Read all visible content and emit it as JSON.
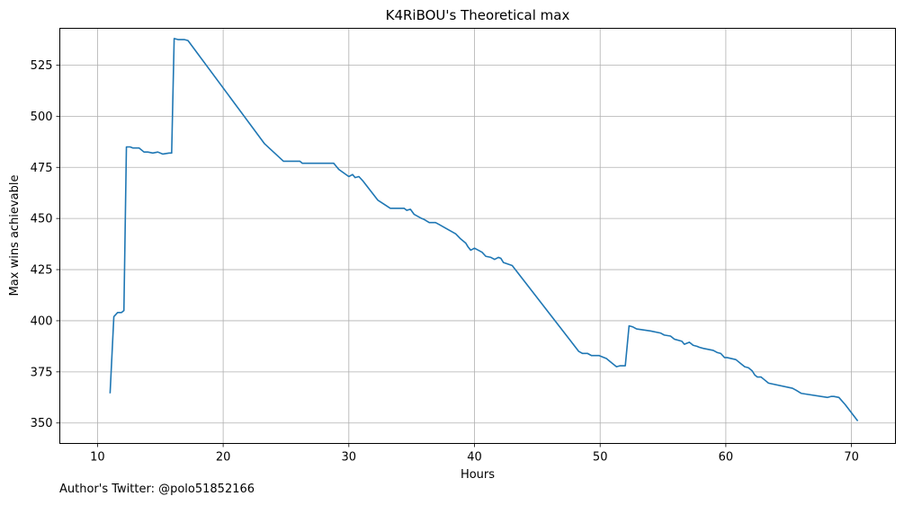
{
  "chart_data": {
    "type": "line",
    "title": "K4RiBOU's Theoretical max",
    "xlabel": "Hours",
    "ylabel": "Max wins achievable",
    "xlim": [
      7.0,
      73.5
    ],
    "ylim": [
      340.0,
      543.0
    ],
    "xticks": [
      10,
      20,
      30,
      40,
      50,
      60,
      70
    ],
    "yticks": [
      350,
      375,
      400,
      425,
      450,
      475,
      500,
      525
    ],
    "grid": true,
    "line_color": "#1f77b4",
    "series": [
      {
        "x": [
          11.0,
          11.3,
          11.6,
          11.9,
          12.0,
          12.1,
          12.3,
          12.6,
          12.8,
          13.0,
          13.3,
          13.7,
          14.0,
          14.4,
          14.8,
          15.2,
          15.7,
          15.9,
          16.1,
          16.4,
          16.9,
          17.2,
          23.3,
          24.8,
          26.1,
          26.3,
          28.8,
          29.2,
          30.0,
          30.3,
          30.5,
          30.8,
          31.1,
          32.3,
          33.3,
          34.4,
          34.6,
          34.9,
          35.2,
          35.8,
          36.0,
          36.4,
          36.9,
          37.2,
          38.5,
          38.9,
          39.3,
          39.5,
          39.7,
          40.0,
          40.3,
          40.6,
          40.9,
          41.3,
          41.6,
          41.9,
          42.1,
          42.3,
          43.0,
          48.3,
          48.6,
          49.0,
          49.3,
          49.9,
          50.1,
          50.5,
          50.9,
          51.3,
          51.6,
          52.0,
          52.3,
          52.6,
          52.9,
          54.0,
          54.8,
          55.1,
          55.6,
          55.9,
          56.5,
          56.7,
          57.1,
          57.4,
          57.7,
          57.9,
          58.2,
          58.6,
          59.0,
          59.3,
          59.6,
          59.9,
          60.1,
          60.8,
          61.2,
          61.5,
          61.8,
          62.1,
          62.3,
          62.5,
          62.8,
          63.0,
          63.4,
          65.3,
          65.6,
          66.0,
          68.1,
          68.4,
          68.6,
          69.0,
          69.5,
          70.5
        ],
        "y": [
          364.5,
          402.0,
          404.0,
          404.0,
          404.5,
          405.0,
          485.0,
          485.0,
          484.5,
          484.5,
          484.5,
          482.5,
          482.5,
          482.0,
          482.5,
          481.5,
          482.0,
          482.0,
          538.0,
          537.5,
          537.5,
          537.0,
          486.5,
          478.0,
          478.0,
          477.0,
          477.0,
          474.0,
          470.5,
          471.5,
          470.0,
          470.5,
          468.5,
          459.0,
          455.0,
          455.0,
          454.0,
          454.5,
          452.0,
          450.0,
          449.5,
          448.0,
          448.0,
          447.0,
          442.5,
          440.0,
          438.0,
          436.0,
          434.5,
          435.5,
          434.5,
          433.5,
          431.5,
          431.0,
          430.0,
          431.0,
          430.5,
          428.5,
          427.0,
          385.0,
          384.0,
          384.0,
          383.0,
          383.0,
          382.5,
          381.5,
          379.5,
          377.5,
          378.0,
          378.0,
          397.5,
          397.0,
          396.0,
          395.0,
          394.0,
          393.0,
          392.5,
          391.0,
          390.0,
          388.5,
          389.5,
          388.0,
          387.5,
          387.0,
          386.5,
          386.0,
          385.5,
          384.5,
          384.0,
          382.0,
          382.0,
          381.0,
          379.0,
          377.5,
          377.0,
          375.5,
          373.5,
          372.5,
          372.5,
          371.5,
          369.5,
          367.0,
          366.0,
          364.5,
          362.5,
          363.0,
          363.0,
          362.5,
          359.0,
          351.0
        ]
      }
    ]
  },
  "footer": {
    "text": "Author's Twitter: @polo51852166"
  }
}
